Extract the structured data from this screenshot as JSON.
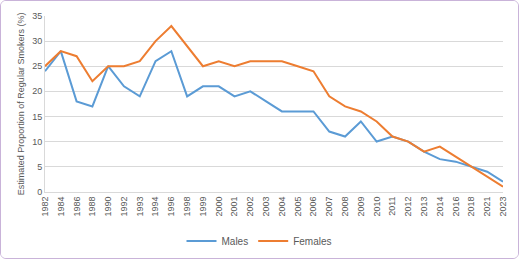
{
  "chart_data": {
    "type": "line",
    "y_label": "Estimated Proportion of Regular Smokers (%)",
    "categories": [
      "1982",
      "1984",
      "1986",
      "1988",
      "1990",
      "1992",
      "1993",
      "1994",
      "1996",
      "1998",
      "1999",
      "2000",
      "2001",
      "2002",
      "2003",
      "2004",
      "2005",
      "2006",
      "2007",
      "2008",
      "2009",
      "2010",
      "2011",
      "2012",
      "2013",
      "2014",
      "2016",
      "2018",
      "2021",
      "2023"
    ],
    "series": [
      {
        "name": "Males",
        "color": "#5b9bd5",
        "values": [
          24,
          28,
          18,
          17,
          25,
          21,
          19,
          26,
          28,
          19,
          21,
          21,
          19,
          20,
          18,
          16,
          16,
          16,
          12,
          11,
          14,
          10,
          11,
          10,
          8,
          6.5,
          6,
          5,
          4,
          2
        ]
      },
      {
        "name": "Females",
        "color": "#ed7d31",
        "values": [
          25,
          28,
          27,
          22,
          25,
          25,
          26,
          30,
          33,
          29,
          25,
          26,
          25,
          26,
          26,
          26,
          25,
          24,
          19,
          17,
          16,
          14,
          11,
          10,
          8,
          9,
          7,
          5,
          3,
          1
        ]
      }
    ],
    "ylim": [
      0,
      35
    ],
    "yticks": [
      0,
      5,
      10,
      15,
      20,
      25,
      30,
      35
    ],
    "grid": true,
    "legend": "bottom"
  }
}
